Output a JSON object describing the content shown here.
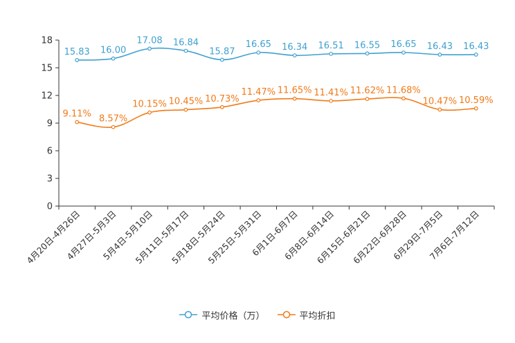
{
  "chart_data": {
    "type": "line",
    "title": "",
    "xlabel": "",
    "ylabel": "",
    "ylim": [
      0,
      18
    ],
    "yticks": [
      0,
      3,
      6,
      9,
      12,
      15,
      18
    ],
    "grid": false,
    "legend_position": "bottom-center",
    "categories": [
      "4月20日-4月26日",
      "4月27日-5月3日",
      "5月4日-5月10日",
      "5月11日-5月17日",
      "5月18日-5月24日",
      "5月25日-5月31日",
      "6月1日-6月7日",
      "6月8日-6月14日",
      "6月15日-6月21日",
      "6月22日-6月28日",
      "6月29日-7月5日",
      "7月6日-7月12日"
    ],
    "series": [
      {
        "name": "平均价格（万）",
        "color": "#3fa0d0",
        "values": [
          15.83,
          16.0,
          17.08,
          16.84,
          15.87,
          16.65,
          16.34,
          16.51,
          16.55,
          16.65,
          16.43,
          16.43
        ],
        "labels": [
          "15.83",
          "16.00",
          "17.08",
          "16.84",
          "15.87",
          "16.65",
          "16.34",
          "16.51",
          "16.55",
          "16.65",
          "16.43",
          "16.43"
        ]
      },
      {
        "name": "平均折扣",
        "color": "#f07a17",
        "values": [
          9.11,
          8.57,
          10.15,
          10.45,
          10.73,
          11.47,
          11.65,
          11.41,
          11.62,
          11.68,
          10.47,
          10.59
        ],
        "labels": [
          "9.11%",
          "8.57%",
          "10.15%",
          "10.45%",
          "10.73%",
          "11.47%",
          "11.65%",
          "11.41%",
          "11.62%",
          "11.68%",
          "10.47%",
          "10.59%"
        ]
      }
    ]
  }
}
